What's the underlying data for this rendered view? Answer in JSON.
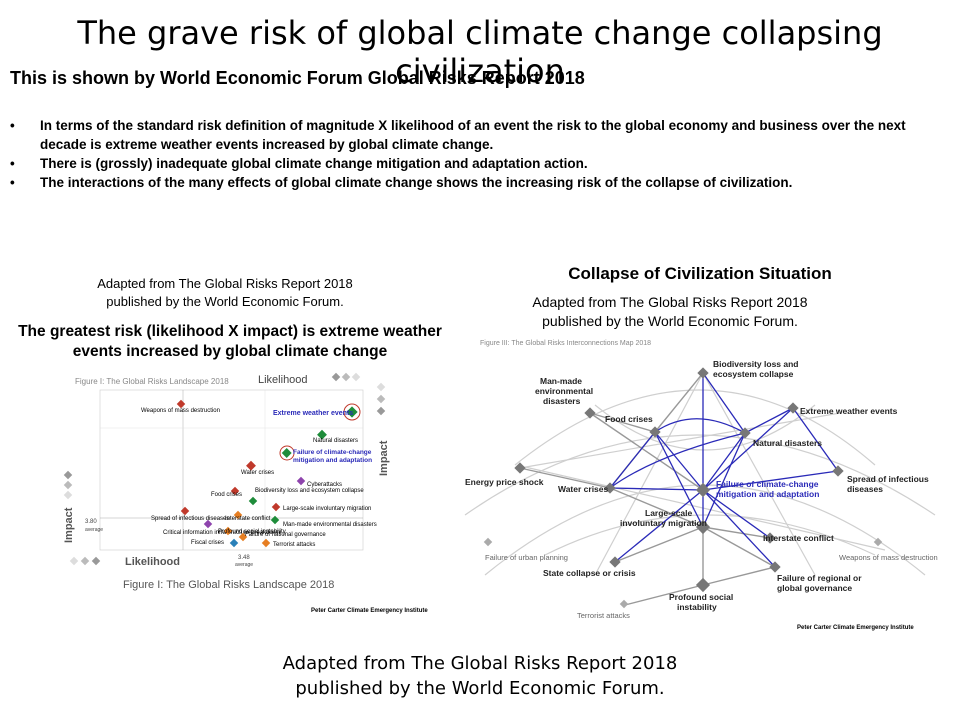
{
  "slide": {
    "title": "The grave risk of global climate change collapsing civilization",
    "subtitle": "This is shown by World Economic Forum Global Risks Report 2018",
    "bullets": [
      "In terms of the standard risk definition of magnitude X likelihood of  an event the risk to the global economy and business  over the next decade is extreme weather events increased by global climate change.",
      "There is (grossly) inadequate global climate change mitigation and adaptation  action.",
      "The interactions of the many effects of global climate change shows the increasing risk of the collapse of civilization."
    ],
    "bottom_caption": [
      "Adapted from The Global Risks Report 2018",
      "published by the World Economic Forum."
    ]
  },
  "left_panel": {
    "caption": [
      "Adapted from The Global Risks Report 2018",
      "published by the World Economic Forum."
    ],
    "heading": [
      "The greatest risk (likelihood X impact) is extreme weather",
      "events increased by global climate change"
    ],
    "figure_top_label": "Figure I: The Global Risks Landscape 2018",
    "likelihood_top": "Likelihood",
    "likelihood_bottom": "Likelihood",
    "impact_left": "Impact",
    "impact_right": "Impact",
    "avg_impact": "3.80",
    "avg_impact_word": "average",
    "avg_likelihood": "3.48",
    "avg_likelihood_word": "average",
    "figure_bottom_label": "Figure I: The Global Risks Landscape 2018",
    "credit": "Peter Carter Climate Emergency Institute",
    "highlight_1": "Extreme weather events",
    "highlight_2": [
      "Failure of climate-change",
      "mitigation and adaptation"
    ],
    "points": [
      {
        "label": "Weapons of mass destruction"
      },
      {
        "label": "Natural disasters"
      },
      {
        "label": "Water crises"
      },
      {
        "label": "Cyberattacks"
      },
      {
        "label": "Food crises"
      },
      {
        "label": "Biodiversity loss and ecosystem collapse"
      },
      {
        "label": "Large-scale involuntary migration"
      },
      {
        "label": "Spread of infectious diseases"
      },
      {
        "label": "Interstate conflict"
      },
      {
        "label": "Man-made environmental disasters"
      },
      {
        "label": "Critical information infrastructure breakdown"
      },
      {
        "label": "Profound social instability"
      },
      {
        "label": "Failure of national governance"
      },
      {
        "label": "Terrorist attacks"
      },
      {
        "label": "Fiscal crises"
      }
    ]
  },
  "right_panel": {
    "heading": "Collapse of Civilization Situation",
    "caption": [
      "Adapted from The Global Risks Report 2018",
      "published by the World Economic Forum."
    ],
    "figure_label": "Figure III: The Global Risks Interconnections Map 2018",
    "credit": "Peter Carter Climate Emergency Institute",
    "nodes": {
      "biodiversity": [
        "Biodiversity loss and",
        "ecosystem collapse"
      ],
      "man_made": [
        "Man-made",
        "environmental",
        "disasters"
      ],
      "food": "Food crises",
      "extreme": "Extreme weather events",
      "natural": "Natural disasters",
      "energy": "Energy price shock",
      "water": "Water crises",
      "failure_cc": [
        "Failure of climate-change",
        "mitigation and adaptation"
      ],
      "spread": [
        "Spread of infectious",
        "diseases"
      ],
      "migration": [
        "Large-scale",
        "involuntary migration"
      ],
      "interstate": "Interstate conflict",
      "urban": "Failure of urban planning",
      "wmd": "Weapons of mass destruction",
      "state": "State collapse or crisis",
      "governance": [
        "Failure of regional or",
        "global governance"
      ],
      "social": [
        "Profound social",
        "instability"
      ],
      "terrorist": "Terrorist attacks"
    }
  }
}
